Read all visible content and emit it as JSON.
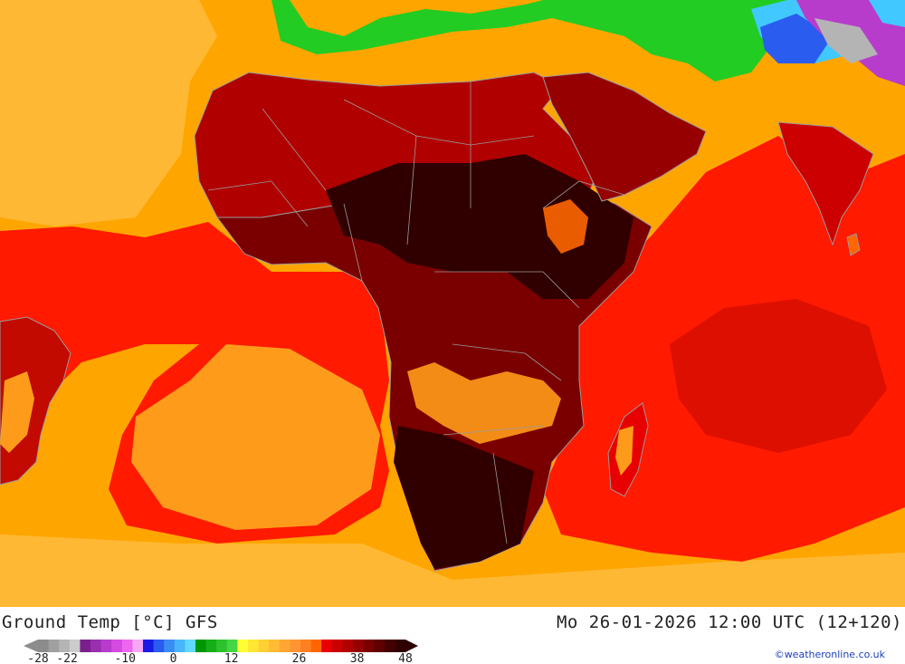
{
  "header": {
    "title": "Ground Temp [°C] GFS",
    "valid_time": "Mo 26-01-2026 12:00 UTC (12+120)"
  },
  "credit": "©weatheronline.co.uk",
  "colorbar": {
    "tick_labels": [
      "-28",
      "-22",
      "-10",
      "0",
      "12",
      "26",
      "38",
      "48"
    ],
    "tick_values": [
      -28,
      -22,
      -10,
      0,
      12,
      26,
      38,
      48
    ],
    "min": -28,
    "max": 48,
    "colors": [
      "#8c8c8c",
      "#a0a0a0",
      "#b4b4b4",
      "#cccccc",
      "#7a1f8c",
      "#9a2fb0",
      "#b83ccc",
      "#d54be0",
      "#ee66f0",
      "#f5a8f5",
      "#1a1ae6",
      "#2a5cf0",
      "#3a8cf5",
      "#4ab6fa",
      "#60d8ff",
      "#009600",
      "#16ae16",
      "#2dc22d",
      "#44d644",
      "#ffff33",
      "#ffe733",
      "#ffd033",
      "#ffbb33",
      "#ffa633",
      "#ff9433",
      "#ff8022",
      "#ff6600",
      "#e80000",
      "#cc0000",
      "#b00000",
      "#960000",
      "#7a0000",
      "#5e0000",
      "#440000",
      "#2e0000"
    ]
  },
  "legend_palette": {
    "sea_warm": "#ffa500",
    "sea_hot": "#ff1a00",
    "land_very_hot": "#7a0000",
    "land_extreme": "#300000",
    "cold_green": "#22cc22",
    "cold_blue": "#2a5cf0",
    "cold_purple": "#b83ccc",
    "border": "#9a9a9a"
  }
}
